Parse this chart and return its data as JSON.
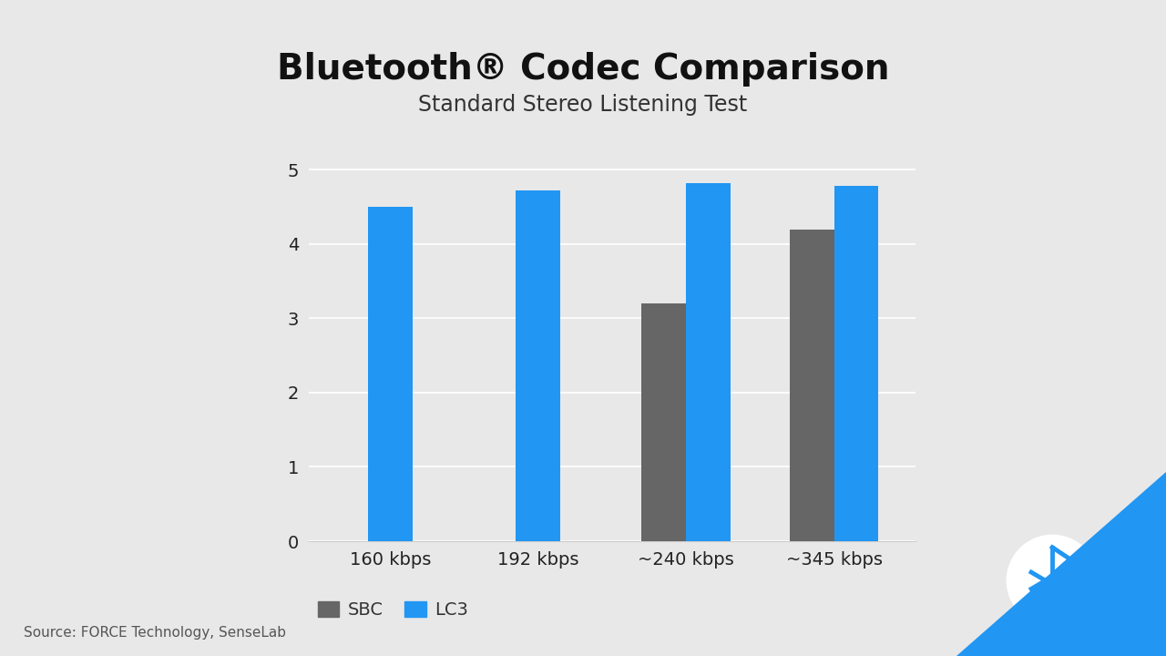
{
  "title": "Bluetooth® Codec Comparison",
  "subtitle": "Standard Stereo Listening Test",
  "categories": [
    "160 kbps",
    "192 kbps",
    "~240 kbps",
    "~345 kbps"
  ],
  "sbc_values": [
    null,
    null,
    3.2,
    4.2
  ],
  "lc3_values": [
    4.5,
    4.72,
    4.82,
    4.78
  ],
  "sbc_color": "#666666",
  "lc3_color": "#2196f3",
  "background_color": "#e8e8e8",
  "title_fontsize": 28,
  "subtitle_fontsize": 17,
  "tick_fontsize": 14,
  "legend_fontsize": 14,
  "source_fontsize": 11,
  "ylim": [
    0,
    5.3
  ],
  "yticks": [
    0,
    1,
    2,
    3,
    4,
    5
  ],
  "source_text": "Source: FORCE Technology, SenseLab",
  "legend_labels": [
    "SBC",
    "LC3"
  ],
  "bar_width": 0.3,
  "bt_blue": "#2196f3"
}
